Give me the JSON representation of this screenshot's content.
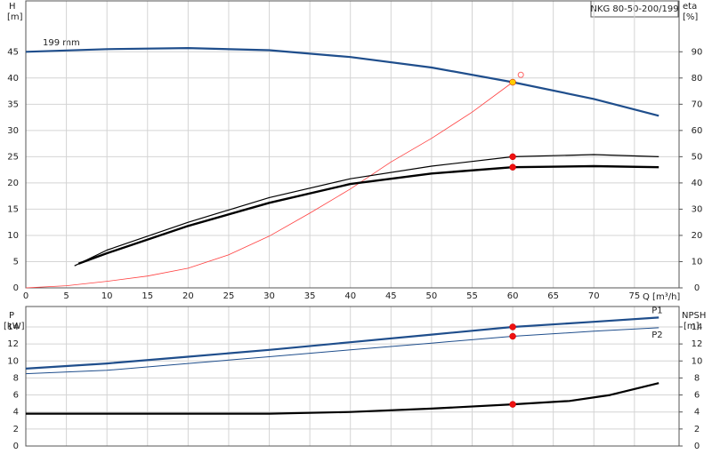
{
  "chart_data": [
    {
      "type": "line",
      "title": "NKG 80-50-200/199",
      "y_label": "H",
      "y_unit": "[m]",
      "y2_label": "eta",
      "y2_unit": "[%]",
      "x_label": "Q [m³/h]",
      "annotation": "199 mm",
      "grid": true,
      "xlim": [
        0,
        80.5
      ],
      "ylim": [
        0,
        54.7
      ],
      "y2lim": [
        0,
        109.4
      ],
      "xticks": [
        0,
        5,
        10,
        15,
        20,
        25,
        30,
        35,
        40,
        45,
        50,
        55,
        60,
        65,
        70,
        75
      ],
      "yticks": [
        0,
        5,
        10,
        15,
        20,
        25,
        30,
        35,
        40,
        45
      ],
      "y2ticks": [
        0,
        10,
        20,
        30,
        40,
        50,
        60,
        70,
        80,
        90
      ],
      "series": [
        {
          "color": "#1f4e8c",
          "width": 2.2,
          "x": [
            0,
            10,
            20,
            30,
            40,
            50,
            60,
            70,
            78
          ],
          "values": [
            45,
            45.5,
            45.7,
            45.3,
            44,
            42,
            39.2,
            36,
            32.8
          ]
        },
        {
          "color": "#ff4040",
          "width": 0.8,
          "axis": "y2",
          "x": [
            0,
            5,
            10,
            15,
            20,
            25,
            30,
            35,
            40,
            45,
            50,
            55,
            60
          ],
          "values": [
            0,
            0.8,
            2.5,
            4.5,
            7.5,
            12.6,
            19.7,
            28.5,
            37.7,
            48,
            57,
            67,
            78.4
          ]
        },
        {
          "color": "#000000",
          "width": 1.2,
          "x": [
            6,
            10,
            20,
            30,
            40,
            50,
            60,
            70,
            78
          ],
          "values": [
            4.2,
            7.2,
            12.5,
            17.2,
            20.8,
            23.2,
            25,
            25.4,
            25
          ]
        },
        {
          "color": "#000000",
          "width": 2.4,
          "x": [
            6.5,
            10,
            20,
            30,
            40,
            50,
            60,
            70,
            78
          ],
          "values": [
            4.6,
            6.6,
            11.8,
            16.2,
            19.8,
            21.8,
            23,
            23.2,
            23
          ]
        }
      ],
      "markers": [
        {
          "x": 60,
          "y": 39.2,
          "color": "#ffcc00"
        },
        {
          "x": 61,
          "y": 40.6,
          "color": "#ff6666",
          "hollow": true
        },
        {
          "x": 60,
          "y": 25,
          "color": "#ee1111"
        },
        {
          "x": 60,
          "y": 23,
          "color": "#ee1111"
        }
      ]
    },
    {
      "type": "line",
      "y_label": "P",
      "y_unit": "[kW]",
      "y2_label": "NPSH",
      "y2_unit": "[m]",
      "grid": true,
      "xlim": [
        0,
        80.5
      ],
      "ylim": [
        0,
        16.4
      ],
      "y2lim": [
        0,
        16.4
      ],
      "yticks": [
        0,
        2,
        4,
        6,
        8,
        10,
        12,
        14
      ],
      "y2ticks": [
        0,
        2,
        4,
        6,
        8,
        10,
        12,
        14
      ],
      "series": [
        {
          "name": "P1",
          "color": "#1f4e8c",
          "width": 2.2,
          "x": [
            0,
            10,
            20,
            30,
            40,
            50,
            60,
            70,
            78
          ],
          "values": [
            9.1,
            9.7,
            10.5,
            11.3,
            12.2,
            13.1,
            14,
            14.6,
            15.1
          ]
        },
        {
          "name": "P2",
          "color": "#1f4e8c",
          "width": 1,
          "x": [
            0,
            10,
            20,
            30,
            40,
            50,
            60,
            70,
            78
          ],
          "values": [
            8.5,
            8.9,
            9.7,
            10.5,
            11.3,
            12.1,
            12.9,
            13.5,
            13.9
          ]
        },
        {
          "color": "#000000",
          "width": 2.2,
          "axis": "y2",
          "x": [
            0,
            10,
            20,
            30,
            40,
            50,
            60,
            67,
            72,
            78
          ],
          "values": [
            3.8,
            3.8,
            3.8,
            3.8,
            4,
            4.4,
            4.9,
            5.3,
            6,
            7.4
          ]
        }
      ],
      "markers": [
        {
          "x": 60,
          "y": 14,
          "color": "#ee1111"
        },
        {
          "x": 60,
          "y": 12.9,
          "color": "#ee1111"
        },
        {
          "x": 60,
          "y": 4.9,
          "color": "#ee1111",
          "axis": "y2"
        }
      ]
    }
  ]
}
